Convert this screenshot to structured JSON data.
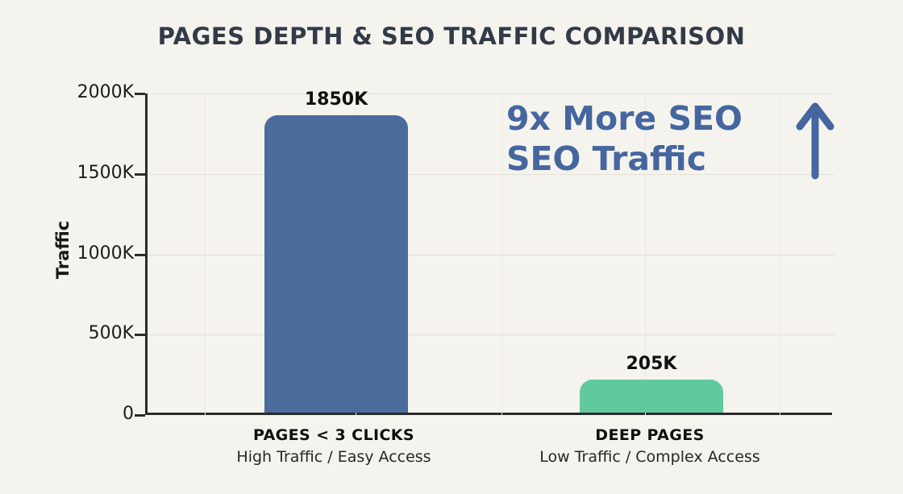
{
  "title": "PAGES DEPTH & SEO TRAFFIC COMPARISON",
  "chart_data": {
    "type": "bar",
    "title": "PAGES DEPTH & SEO TRAFFIC COMPARISON",
    "xlabel": "",
    "ylabel": "Traffic",
    "ylim": [
      0,
      2000
    ],
    "unit": "K",
    "grid": true,
    "legend_position": "none",
    "y_ticks": [
      {
        "value": 0,
        "label": "0"
      },
      {
        "value": 500,
        "label": "500K"
      },
      {
        "value": 1000,
        "label": "1000K"
      },
      {
        "value": 1500,
        "label": "1500K"
      },
      {
        "value": 2000,
        "label": "2000K"
      }
    ],
    "categories": [
      "PAGES < 3 CLICKS",
      "DEEP PAGES"
    ],
    "values": [
      1850,
      205
    ],
    "bars": [
      {
        "category": "PAGES < 3 CLICKS",
        "subtitle": "High Traffic / Easy Access",
        "value": 1850,
        "value_label": "1850K",
        "color": "#4a6b9b"
      },
      {
        "category": "DEEP PAGES",
        "subtitle": "Low Traffic / Complex Access",
        "value": 205,
        "value_label": "205K",
        "color": "#60c99d"
      }
    ]
  },
  "annotation": {
    "line1": "9x More SEO",
    "line2": "SEO Traffic",
    "color": "#45669f",
    "icon": "arrow-up-icon"
  },
  "colors": {
    "background": "#f5f3ee",
    "axis": "#2b2b2b",
    "title_text": "#333a47",
    "grid_h": "#e3e0d8",
    "grid_v": "#ebe8e1",
    "bar_blue": "#4a6b9b",
    "bar_green": "#60c99d",
    "annotation_blue": "#45669f"
  }
}
